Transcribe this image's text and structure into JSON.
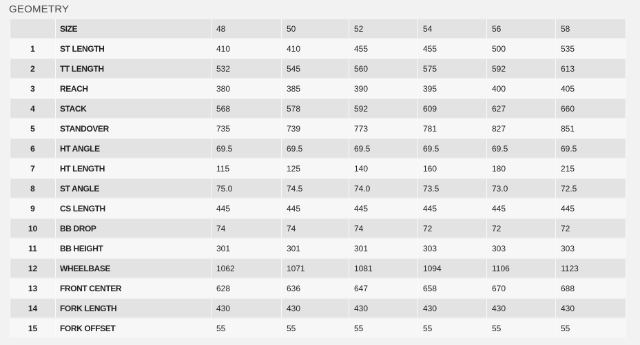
{
  "title": "GEOMETRY",
  "header": {
    "label": "SIZE",
    "sizes": [
      "48",
      "50",
      "52",
      "54",
      "56",
      "58"
    ]
  },
  "rows": [
    {
      "n": "1",
      "label": "ST LENGTH",
      "values": [
        "410",
        "410",
        "455",
        "455",
        "500",
        "535"
      ]
    },
    {
      "n": "2",
      "label": "TT LENGTH",
      "values": [
        "532",
        "545",
        "560",
        "575",
        "592",
        "613"
      ]
    },
    {
      "n": "3",
      "label": "REACH",
      "values": [
        "380",
        "385",
        "390",
        "395",
        "400",
        "405"
      ]
    },
    {
      "n": "4",
      "label": "STACK",
      "values": [
        "568",
        "578",
        "592",
        "609",
        "627",
        "660"
      ]
    },
    {
      "n": "5",
      "label": "STANDOVER",
      "values": [
        "735",
        "739",
        "773",
        "781",
        "827",
        "851"
      ]
    },
    {
      "n": "6",
      "label": "HT ANGLE",
      "values": [
        "69.5",
        "69.5",
        "69.5",
        "69.5",
        "69.5",
        "69.5"
      ]
    },
    {
      "n": "7",
      "label": "HT LENGTH",
      "values": [
        "115",
        "125",
        "140",
        "160",
        "180",
        "215"
      ]
    },
    {
      "n": "8",
      "label": "ST ANGLE",
      "values": [
        "75.0",
        "74.5",
        "74.0",
        "73.5",
        "73.0",
        "72.5"
      ]
    },
    {
      "n": "9",
      "label": "CS LENGTH",
      "values": [
        "445",
        "445",
        "445",
        "445",
        "445",
        "445"
      ]
    },
    {
      "n": "10",
      "label": "BB DROP",
      "values": [
        "74",
        "74",
        "74",
        "72",
        "72",
        "72"
      ]
    },
    {
      "n": "11",
      "label": "BB HEIGHT",
      "values": [
        "301",
        "301",
        "301",
        "303",
        "303",
        "303"
      ]
    },
    {
      "n": "12",
      "label": "WHEELBASE",
      "values": [
        "1062",
        "1071",
        "1081",
        "1094",
        "1106",
        "1123"
      ]
    },
    {
      "n": "13",
      "label": "FRONT CENTER",
      "values": [
        "628",
        "636",
        "647",
        "658",
        "670",
        "688"
      ]
    },
    {
      "n": "14",
      "label": "FORK LENGTH",
      "values": [
        "430",
        "430",
        "430",
        "430",
        "430",
        "430"
      ]
    },
    {
      "n": "15",
      "label": "FORK OFFSET",
      "values": [
        "55",
        "55",
        "55",
        "55",
        "55",
        "55"
      ]
    }
  ]
}
